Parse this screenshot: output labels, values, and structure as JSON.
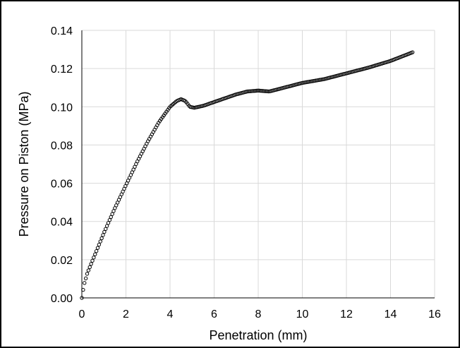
{
  "chart_data": {
    "type": "scatter",
    "title": "",
    "xlabel": "Penetration (mm)",
    "ylabel": "Pressure on Piston (MPa)",
    "xlim": [
      0,
      16
    ],
    "ylim": [
      0,
      0.14
    ],
    "x_ticks": [
      "0",
      "2",
      "4",
      "6",
      "8",
      "10",
      "12",
      "14",
      "16"
    ],
    "y_ticks": [
      "0.00",
      "0.02",
      "0.04",
      "0.06",
      "0.08",
      "0.10",
      "0.12",
      "0.14"
    ],
    "grid": true,
    "legend": "none",
    "marker": "hollow-circle",
    "colors": {
      "marker": "#000000",
      "grid": "#d9d9d9",
      "axis": "#000000",
      "background": "#ffffff"
    },
    "series": [
      {
        "x": [
          0,
          0.1,
          0.25,
          0.5,
          1,
          1.5,
          2,
          2.5,
          3,
          3.5,
          4,
          4.3,
          4.5,
          4.7,
          4.9,
          5.1,
          5.5,
          6,
          6.5,
          7,
          7.5,
          8,
          8.5,
          9,
          9.5,
          10,
          11,
          12,
          13,
          14,
          15
        ],
        "y": [
          0.0,
          0.007,
          0.013,
          0.02,
          0.034,
          0.047,
          0.059,
          0.071,
          0.082,
          0.092,
          0.1,
          0.103,
          0.104,
          0.103,
          0.1,
          0.0995,
          0.1005,
          0.1025,
          0.1045,
          0.1065,
          0.108,
          0.1085,
          0.108,
          0.1095,
          0.111,
          0.1125,
          0.1145,
          0.1175,
          0.1205,
          0.124,
          0.1285
        ]
      }
    ]
  }
}
